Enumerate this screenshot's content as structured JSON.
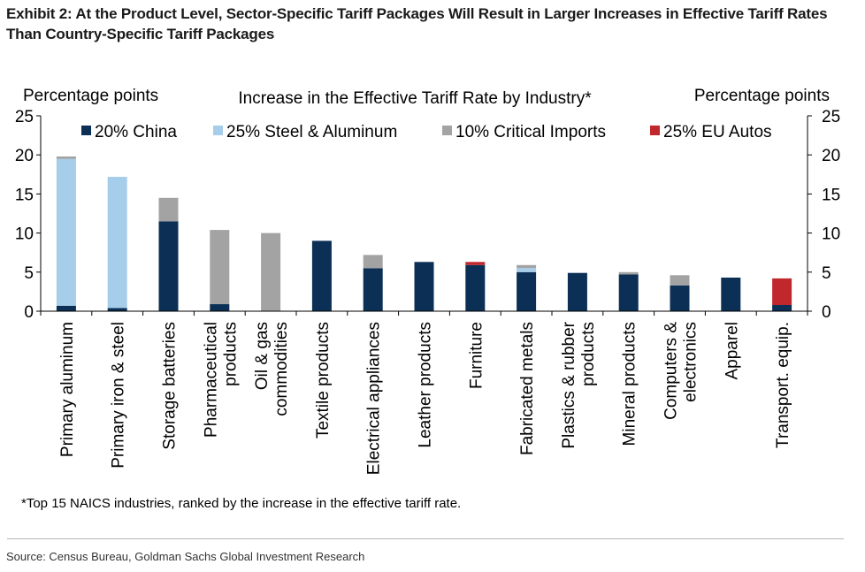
{
  "title": "Exhibit 2: At the Product Level, Sector-Specific Tariff Packages Will Result in Larger Increases in Effective Tariff Rates Than Country-Specific Tariff Packages",
  "source": "Source: Census Bureau, Goldman Sachs Global Investment Research",
  "chart_data": {
    "type": "bar",
    "stacked": true,
    "title": "Increase in the Effective Tariff Rate by Industry*",
    "ylabel_left": "Percentage points",
    "ylabel_right": "Percentage points",
    "ylim": [
      0,
      25
    ],
    "yticks": [
      0,
      5,
      10,
      15,
      20,
      25
    ],
    "grid": false,
    "legend_position": "top",
    "footnote": "*Top 15 NAICS industries, ranked by the increase in the effective tariff rate.",
    "categories": [
      [
        "Primary aluminum"
      ],
      [
        "Primary iron & steel"
      ],
      [
        "Storage batteries"
      ],
      [
        "Pharmaceutical",
        "products"
      ],
      [
        "Oil & gas",
        "commodities"
      ],
      [
        "Textile products"
      ],
      [
        "Electrical appliances"
      ],
      [
        "Leather products"
      ],
      [
        "Furniture"
      ],
      [
        "Fabricated metals"
      ],
      [
        "Plastics & rubber",
        "products"
      ],
      [
        "Mineral products"
      ],
      [
        "Computers &",
        "electronics"
      ],
      [
        "Apparel"
      ],
      [
        "Transport. equip."
      ]
    ],
    "series": [
      {
        "name": "20% China",
        "color": "#0b2f55",
        "values": [
          0.7,
          0.4,
          11.5,
          0.9,
          0.0,
          9.0,
          5.5,
          6.3,
          5.9,
          5.0,
          4.9,
          4.7,
          3.3,
          4.3,
          0.8
        ]
      },
      {
        "name": "25% Steel & Aluminum",
        "color": "#a6cdea",
        "values": [
          18.8,
          16.8,
          0.0,
          0.0,
          0.0,
          0.0,
          0.0,
          0.0,
          0.0,
          0.5,
          0.0,
          0.0,
          0.0,
          0.0,
          0.0
        ]
      },
      {
        "name": "10% Critical Imports",
        "color": "#a3a3a3",
        "values": [
          0.3,
          0.0,
          3.0,
          9.5,
          10.0,
          0.0,
          1.7,
          0.0,
          0.0,
          0.4,
          0.0,
          0.3,
          1.3,
          0.0,
          0.0
        ]
      },
      {
        "name": "25% EU Autos",
        "color": "#c0282d",
        "values": [
          0.0,
          0.0,
          0.0,
          0.0,
          0.0,
          0.0,
          0.0,
          0.0,
          0.4,
          0.0,
          0.0,
          0.0,
          0.0,
          0.0,
          3.4
        ]
      }
    ]
  }
}
